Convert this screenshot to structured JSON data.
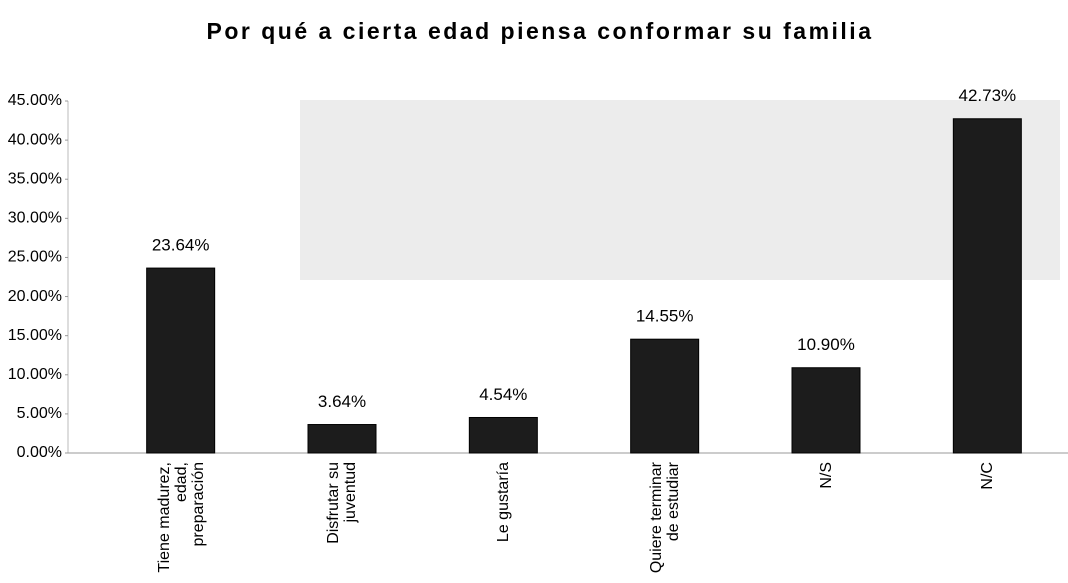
{
  "chart_data": {
    "type": "bar",
    "title": "Por qué a cierta edad piensa conformar su familia",
    "categories": [
      "Tiene madurez, edad, preparación",
      "Disfrutar su juventud",
      "Le gustaría",
      "Quiere terminar de estudiar",
      "N/S",
      "N/C"
    ],
    "values": [
      23.64,
      3.64,
      4.54,
      14.55,
      10.9,
      42.73
    ],
    "value_labels": [
      "23.64%",
      "3.64%",
      "4.54%",
      "14.55%",
      "10.90%",
      "42.73%"
    ],
    "color": "#1c1c1c",
    "ylim": [
      0,
      45
    ],
    "yticks": [
      {
        "value": 0,
        "label": "0.00%"
      },
      {
        "value": 5,
        "label": "5.00%"
      },
      {
        "value": 10,
        "label": "10.00%"
      },
      {
        "value": 15,
        "label": "15.00%"
      },
      {
        "value": 20,
        "label": "20.00%"
      },
      {
        "value": 25,
        "label": "25.00%"
      },
      {
        "value": 30,
        "label": "30.00%"
      },
      {
        "value": 35,
        "label": "35.00%"
      },
      {
        "value": 40,
        "label": "40.00%"
      },
      {
        "value": 45,
        "label": "45.00%"
      }
    ],
    "grid": false
  }
}
